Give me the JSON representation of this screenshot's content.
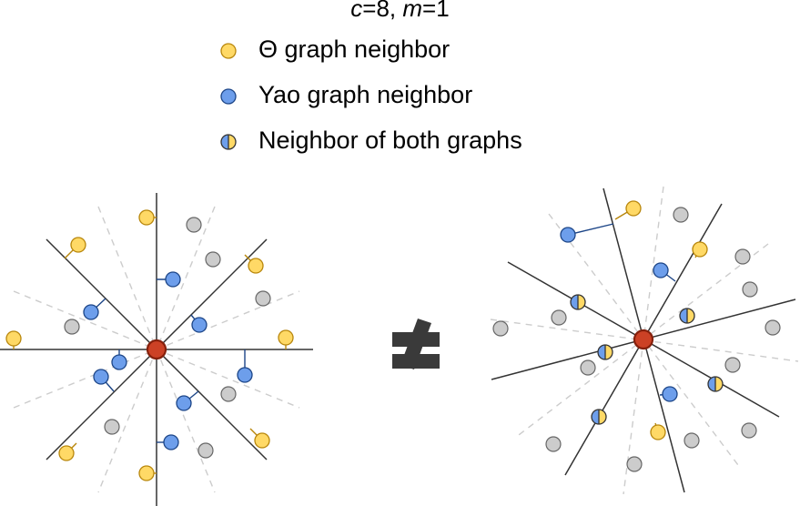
{
  "title": {
    "c_label": "c",
    "c_value": "=8, ",
    "m_label": "m",
    "m_value": "=1"
  },
  "legend": {
    "items": [
      {
        "label": "Θ graph neighbor",
        "kind": "theta"
      },
      {
        "label": "Yao graph neighbor",
        "kind": "yao"
      },
      {
        "label": "Neighbor of both graphs",
        "kind": "both"
      }
    ]
  },
  "relation_symbol": "≉",
  "colors": {
    "theta": "#ffd966",
    "theta_stroke": "#b8860b",
    "yao": "#6d9eeb",
    "yao_stroke": "#1c4587",
    "gray": "#cccccc",
    "gray_stroke": "#666666",
    "center": "#cc4125",
    "center_stroke": "#85200c",
    "cone_line": "#333333",
    "bisector": "#cccccc"
  }
}
